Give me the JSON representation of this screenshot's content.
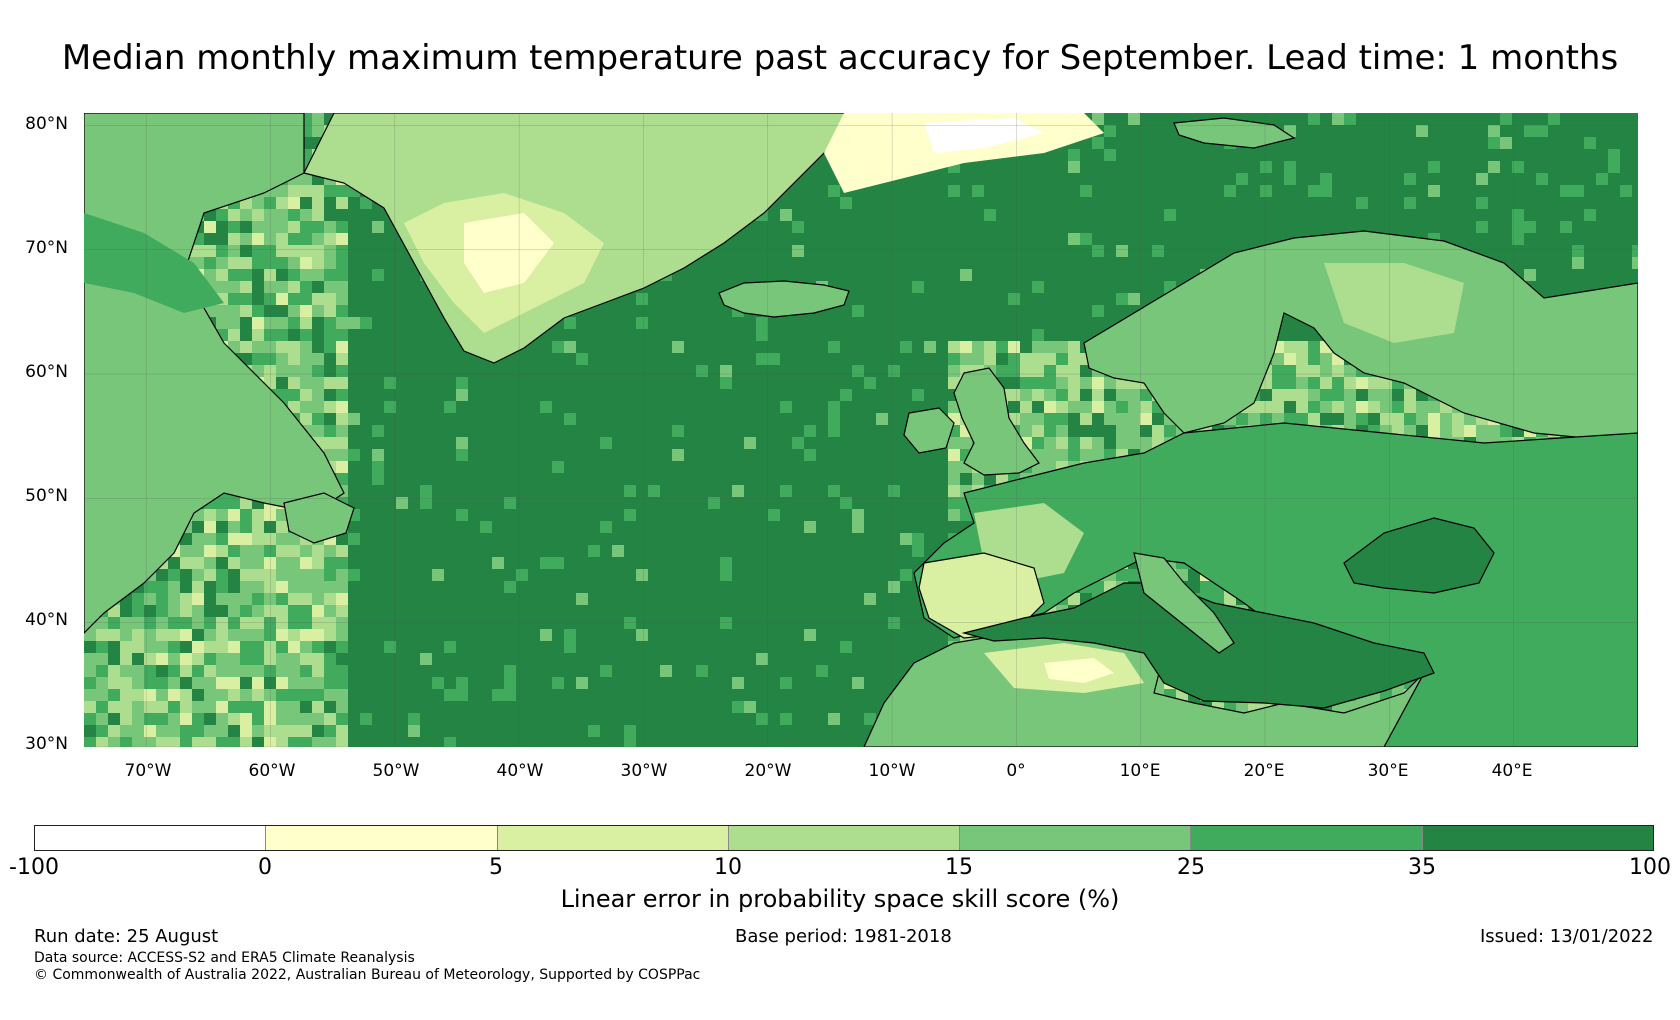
{
  "title": "Median monthly maximum temperature past accuracy for September. Lead time: 1 months",
  "map": {
    "lat_labels": [
      "80°N",
      "70°N",
      "60°N",
      "50°N",
      "40°N",
      "30°N"
    ],
    "lon_labels": [
      "70°W",
      "60°W",
      "50°W",
      "40°W",
      "30°W",
      "20°W",
      "10°W",
      "0°",
      "10°E",
      "20°E",
      "30°E",
      "40°E"
    ],
    "lat_range": [
      30,
      81
    ],
    "lon_range": [
      -75,
      50
    ],
    "gridlines": true,
    "regions": [
      "North Atlantic",
      "Greenland",
      "Iceland",
      "Europe",
      "Scandinavia",
      "Mediterranean",
      "North Africa",
      "Black Sea",
      "Eastern Canada"
    ]
  },
  "colorbar": {
    "ticks": [
      "-100",
      "0",
      "5",
      "10",
      "15",
      "25",
      "35",
      "100"
    ],
    "colors": [
      "#ffffff",
      "#ffffcc",
      "#d9f0a3",
      "#addd8e",
      "#78c679",
      "#41ab5d",
      "#238443"
    ],
    "label": "Linear error in probability space skill score (%)"
  },
  "footer": {
    "run_date": "Run date: 25 August",
    "base_period": "Base period: 1981-2018",
    "issued": "Issued: 13/01/2022",
    "data_source": "Data source: ACCESS-S2 and ERA5 Climate Reanalysis",
    "copyright": "© Commonwealth of Australia 2022, Australian Bureau of Meteorology, Supported by COSPPac"
  }
}
